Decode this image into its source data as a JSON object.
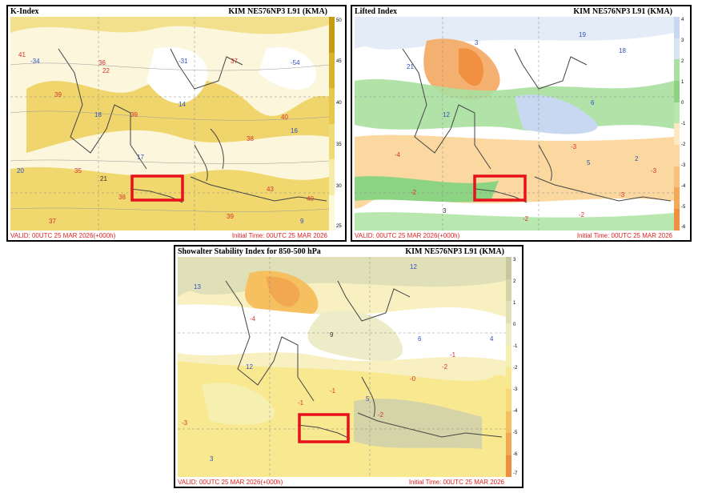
{
  "panels": [
    {
      "id": "k_index",
      "title": "K-Index",
      "model": "KIM NE576NP3 L91 (KMA)",
      "valid": "VALID: 00UTC 25 MAR 2026(+000h)",
      "initial": "Initial Time: 00UTC 25 MAR 2026",
      "colorbar": {
        "ticks": [
          "50",
          "45",
          "40",
          "35",
          "30",
          "25"
        ],
        "colors": [
          "#c89a10",
          "#d8b22a",
          "#e6c84a",
          "#efda78",
          "#f7eba8",
          "#fdf8d8"
        ]
      },
      "map_labels": [
        {
          "text": "41",
          "color": "#d83030"
        },
        {
          "text": "-34",
          "color": "#3050c0"
        },
        {
          "text": "22",
          "color": "#d83030"
        },
        {
          "text": "36",
          "color": "#d83030"
        },
        {
          "text": "-31",
          "color": "#3050c0"
        },
        {
          "text": "37",
          "color": "#d83030"
        },
        {
          "text": "-54",
          "color": "#3050c0"
        },
        {
          "text": "39",
          "color": "#d83030"
        },
        {
          "text": "18",
          "color": "#3050c0"
        },
        {
          "text": "39",
          "color": "#d83030"
        },
        {
          "text": "14",
          "color": "#3050c0"
        },
        {
          "text": "40",
          "color": "#d83030"
        },
        {
          "text": "16",
          "color": "#3050c0"
        },
        {
          "text": "38",
          "color": "#d83030"
        },
        {
          "text": "17",
          "color": "#3050c0"
        },
        {
          "text": "35",
          "color": "#d83030"
        },
        {
          "text": "20",
          "color": "#3050c0"
        },
        {
          "text": "38",
          "color": "#d83030"
        },
        {
          "text": "43",
          "color": "#d83030"
        },
        {
          "text": "40",
          "color": "#d83030"
        },
        {
          "text": "37",
          "color": "#d83030"
        },
        {
          "text": "39",
          "color": "#d83030"
        },
        {
          "text": "9",
          "color": "#3050c0"
        },
        {
          "text": "21",
          "color": "#333333"
        }
      ]
    },
    {
      "id": "lifted_index",
      "title": "Lifted Index",
      "model": "KIM NE576NP3 L91 (KMA)",
      "valid": "VALID: 00UTC 25 MAR 2026(+000h)",
      "initial": "Initial Time: 00UTC 25 MAR 2026",
      "colorbar": {
        "ticks": [
          "4",
          "3",
          "2",
          "1",
          "0",
          "-1",
          "-2",
          "-3",
          "-4",
          "-5",
          "-6"
        ],
        "colors": [
          "#c8d8f0",
          "#d8e4f4",
          "#a8e0a0",
          "#8cd484",
          "#b8e8b0",
          "#fde8c0",
          "#fbd8a0",
          "#f8c078",
          "#f4a858",
          "#f09040"
        ]
      },
      "map_labels": [
        {
          "text": "19",
          "color": "#3050c0"
        },
        {
          "text": "18",
          "color": "#3050c0"
        },
        {
          "text": "21",
          "color": "#3050c0"
        },
        {
          "text": "12",
          "color": "#3050c0"
        },
        {
          "text": "-3",
          "color": "#d83030"
        },
        {
          "text": "-4",
          "color": "#d83030"
        },
        {
          "text": "-2",
          "color": "#d83030"
        },
        {
          "text": "-3",
          "color": "#d83030"
        },
        {
          "text": "-2",
          "color": "#d83030"
        },
        {
          "text": "3",
          "color": "#3050c0"
        },
        {
          "text": "5",
          "color": "#3050c0"
        },
        {
          "text": "6",
          "color": "#3050c0"
        },
        {
          "text": "-2",
          "color": "#d83030"
        },
        {
          "text": "-3",
          "color": "#d83030"
        },
        {
          "text": "2",
          "color": "#3050c0"
        },
        {
          "text": "3",
          "color": "#333333"
        }
      ]
    },
    {
      "id": "showalter",
      "title": "Showalter Stability Index for 850-500 hPa",
      "model": "KIM NE576NP3 L91 (KMA)",
      "valid": "VALID: 00UTC 25 MAR 2026(+000h)",
      "initial": "Initial Time: 00UTC 25 MAR 2026",
      "colorbar": {
        "ticks": [
          "3",
          "2",
          "1",
          "0",
          "-1",
          "-2",
          "-3",
          "-4",
          "-5",
          "-6",
          "-7"
        ],
        "colors": [
          "#c8c8a0",
          "#d4d4a8",
          "#e0e0b8",
          "#ececc8",
          "#f6f0b0",
          "#f8e890",
          "#f8d878",
          "#f6c060",
          "#f2a850",
          "#ec9040"
        ]
      },
      "map_labels": [
        {
          "text": "13",
          "color": "#3050c0"
        },
        {
          "text": "12",
          "color": "#3050c0"
        },
        {
          "text": "-4",
          "color": "#d83030"
        },
        {
          "text": "9",
          "color": "#333333"
        },
        {
          "text": "6",
          "color": "#3050c0"
        },
        {
          "text": "12",
          "color": "#3050c0"
        },
        {
          "text": "4",
          "color": "#3050c0"
        },
        {
          "text": "-1",
          "color": "#d83030"
        },
        {
          "text": "-2",
          "color": "#d83030"
        },
        {
          "text": "-3",
          "color": "#d83030"
        },
        {
          "text": "-0",
          "color": "#d83030"
        },
        {
          "text": "-1",
          "color": "#d83030"
        },
        {
          "text": "3",
          "color": "#3050c0"
        },
        {
          "text": "-2",
          "color": "#d83030"
        },
        {
          "text": "5",
          "color": "#3050c0"
        },
        {
          "text": "-1",
          "color": "#d83030"
        }
      ]
    }
  ],
  "highlight_color": "#e8101a"
}
